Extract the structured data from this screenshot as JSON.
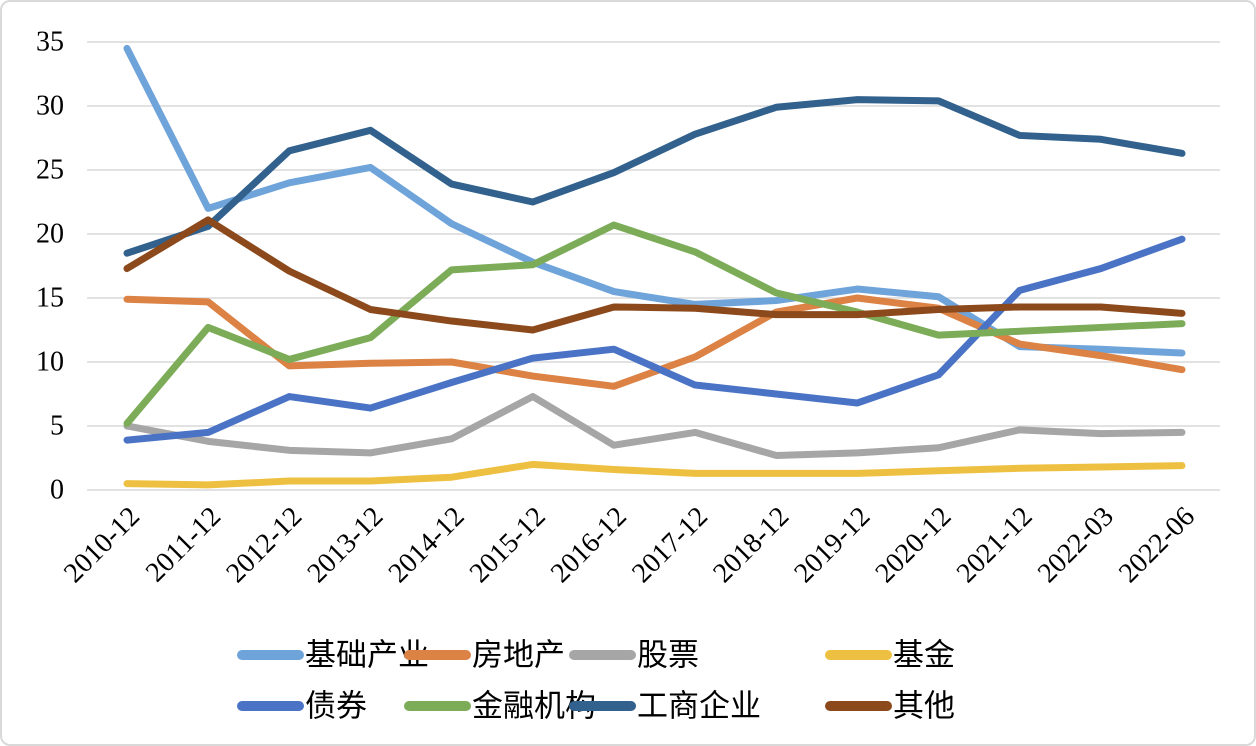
{
  "chart_data": {
    "type": "line",
    "title": "",
    "xlabel": "",
    "ylabel": "",
    "ylim": [
      0,
      35
    ],
    "ytick_step": 5,
    "grid": true,
    "gridline_color": "#d9d9d9",
    "legend_position": "bottom",
    "categories": [
      "2010-12",
      "2011-12",
      "2012-12",
      "2013-12",
      "2014-12",
      "2015-12",
      "2016-12",
      "2017-12",
      "2018-12",
      "2019-12",
      "2020-12",
      "2021-12",
      "2022-03",
      "2022-06"
    ],
    "series": [
      {
        "name": "基础产业",
        "color": "#6FA4DA",
        "values": [
          34.5,
          22.0,
          24.0,
          25.2,
          20.8,
          17.8,
          15.5,
          14.5,
          14.8,
          15.7,
          15.1,
          11.2,
          11.0,
          10.7
        ]
      },
      {
        "name": "房地产",
        "color": "#DB8244",
        "values": [
          14.9,
          14.7,
          9.7,
          9.9,
          10.0,
          8.9,
          8.1,
          10.4,
          13.9,
          15.0,
          14.2,
          11.4,
          10.5,
          9.4
        ]
      },
      {
        "name": "股票",
        "color": "#A6A6A6",
        "values": [
          5.0,
          3.8,
          3.1,
          2.9,
          4.0,
          7.3,
          3.5,
          4.5,
          2.7,
          2.9,
          3.3,
          4.7,
          4.4,
          4.5
        ]
      },
      {
        "name": "基金",
        "color": "#EEC042",
        "values": [
          0.5,
          0.4,
          0.7,
          0.7,
          1.0,
          2.0,
          1.6,
          1.3,
          1.3,
          1.3,
          1.5,
          1.7,
          1.8,
          1.9
        ]
      },
      {
        "name": "债券",
        "color": "#4A73C5",
        "values": [
          3.9,
          4.5,
          7.3,
          6.4,
          8.4,
          10.3,
          11.0,
          8.2,
          7.5,
          6.8,
          9.0,
          15.6,
          17.3,
          19.6
        ]
      },
      {
        "name": "金融机构",
        "color": "#7CAC58",
        "values": [
          5.2,
          12.7,
          10.2,
          11.9,
          17.2,
          17.6,
          20.7,
          18.6,
          15.4,
          13.9,
          12.1,
          12.4,
          12.7,
          13.0
        ]
      },
      {
        "name": "工商企业",
        "color": "#31618C",
        "values": [
          18.5,
          20.6,
          26.5,
          28.1,
          23.9,
          22.5,
          24.8,
          27.8,
          29.9,
          30.5,
          30.4,
          27.7,
          27.4,
          26.3
        ]
      },
      {
        "name": "其他",
        "color": "#8C491B",
        "values": [
          17.3,
          21.1,
          17.1,
          14.1,
          13.2,
          12.5,
          14.3,
          14.2,
          13.7,
          13.7,
          14.1,
          14.3,
          14.3,
          13.8
        ]
      }
    ],
    "legend_rows": [
      [
        "基础产业",
        "房地产",
        "股票",
        "基金"
      ],
      [
        "债券",
        "金融机构",
        "工商企业",
        "其他"
      ]
    ]
  }
}
